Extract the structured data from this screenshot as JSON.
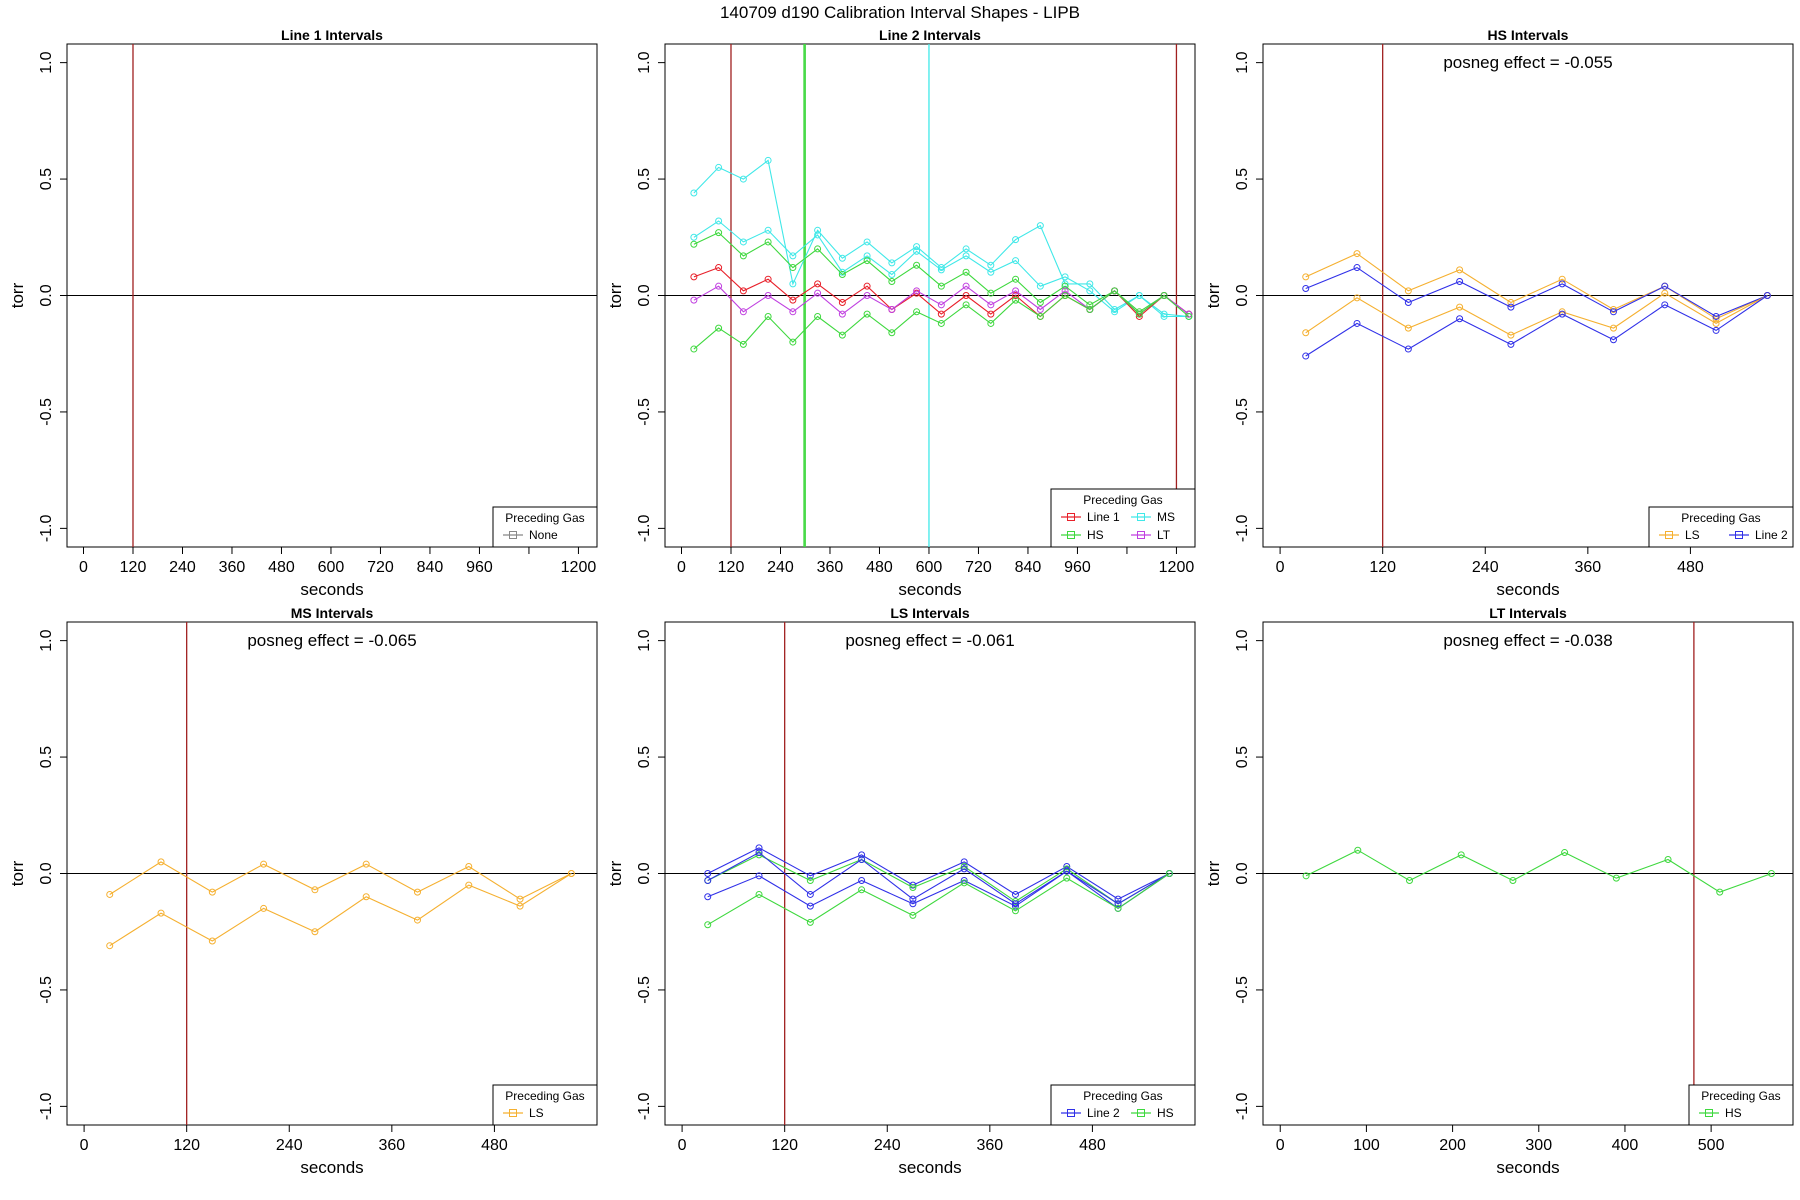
{
  "figure_title": "140709   d190   Calibration Interval Shapes - LIPB",
  "colors": {
    "Line 1": "#e8202a",
    "Line 2": "#3030e8",
    "HS": "#3ed83e",
    "MS": "#40e8e8",
    "LT": "#c040e0",
    "LS": "#f5b030",
    "None": "#888888",
    "marker": "#a02020",
    "axis": "#000000"
  },
  "chart_data": [
    {
      "type": "line",
      "title": "Line 1 Intervals",
      "xlabel": "seconds",
      "ylabel": "torr",
      "xlim": [
        -40,
        1245
      ],
      "ylim": [
        -1.08,
        1.08
      ],
      "xticks": [
        0,
        120,
        240,
        360,
        480,
        600,
        720,
        840,
        960,
        1080,
        1200
      ],
      "xtick_labels": [
        "0",
        "120",
        "240",
        "360",
        "480",
        "600",
        "720",
        "840",
        "960",
        "",
        "1200"
      ],
      "yticks": [
        -1.0,
        -0.5,
        0.0,
        0.5,
        1.0
      ],
      "ytick_labels": [
        "-1.0",
        "-0.5",
        "0.0",
        "0.5",
        "1.0"
      ],
      "vlines": [
        {
          "x": 120,
          "color_key": "marker"
        }
      ],
      "legend": {
        "title": "Preceding Gas",
        "entries": [
          "None"
        ],
        "columns": 1
      },
      "annotation": "",
      "series": []
    },
    {
      "type": "line",
      "title": "Line 2 Intervals",
      "xlabel": "seconds",
      "ylabel": "torr",
      "xlim": [
        -40,
        1245
      ],
      "ylim": [
        -1.08,
        1.08
      ],
      "xticks": [
        0,
        120,
        240,
        360,
        480,
        600,
        720,
        840,
        960,
        1080,
        1200
      ],
      "xtick_labels": [
        "0",
        "120",
        "240",
        "360",
        "480",
        "600",
        "720",
        "840",
        "960",
        "",
        "1200"
      ],
      "yticks": [
        -1.0,
        -0.5,
        0.0,
        0.5,
        1.0
      ],
      "ytick_labels": [
        "-1.0",
        "-0.5",
        "0.0",
        "0.5",
        "1.0"
      ],
      "vlines": [
        {
          "x": 120,
          "color_key": "marker"
        },
        {
          "x": 297,
          "color_key": "HS"
        },
        {
          "x": 300,
          "color_key": "HS"
        },
        {
          "x": 600,
          "color_key": "MS"
        },
        {
          "x": 1200,
          "color_key": "marker"
        }
      ],
      "legend": {
        "title": "Preceding Gas",
        "entries": [
          "Line 1",
          "MS",
          "HS",
          "LT"
        ],
        "columns": 2
      },
      "annotation": "",
      "series": [
        {
          "name": "MS",
          "x": [
            30,
            90,
            150,
            210,
            270,
            330,
            390,
            450,
            510,
            570,
            630,
            690,
            750,
            810,
            870,
            930,
            990,
            1050,
            1110,
            1170,
            1230
          ],
          "values": [
            0.44,
            0.55,
            0.5,
            0.58,
            0.05,
            0.28,
            0.16,
            0.23,
            0.14,
            0.21,
            0.12,
            0.2,
            0.13,
            0.24,
            0.3,
            0.05,
            0.05,
            -0.06,
            0.0,
            -0.08,
            -0.09
          ]
        },
        {
          "name": "MS",
          "x": [
            30,
            90,
            150,
            210,
            270,
            330,
            390,
            450,
            510,
            570,
            630,
            690,
            750,
            810,
            870,
            930,
            990,
            1050,
            1110,
            1170,
            1230
          ],
          "values": [
            0.25,
            0.32,
            0.23,
            0.28,
            0.17,
            0.26,
            0.1,
            0.17,
            0.09,
            0.19,
            0.11,
            0.17,
            0.1,
            0.15,
            0.04,
            0.08,
            0.02,
            -0.07,
            0.0,
            -0.09,
            -0.09
          ]
        },
        {
          "name": "HS",
          "x": [
            30,
            90,
            150,
            210,
            270,
            330,
            390,
            450,
            510,
            570,
            630,
            690,
            750,
            810,
            870,
            930,
            990,
            1050,
            1110,
            1170,
            1230
          ],
          "values": [
            0.22,
            0.27,
            0.17,
            0.23,
            0.12,
            0.2,
            0.09,
            0.15,
            0.06,
            0.13,
            0.04,
            0.1,
            0.01,
            0.07,
            -0.03,
            0.04,
            -0.04,
            0.02,
            -0.07,
            0.0,
            -0.08
          ]
        },
        {
          "name": "Line 1",
          "x": [
            30,
            90,
            150,
            210,
            270,
            330,
            390,
            450,
            510,
            570,
            630,
            690,
            750,
            810,
            870,
            930,
            990,
            1050,
            1110,
            1170,
            1230
          ],
          "values": [
            0.08,
            0.12,
            0.02,
            0.07,
            -0.02,
            0.05,
            -0.03,
            0.04,
            -0.06,
            0.01,
            -0.08,
            0.0,
            -0.08,
            0.0,
            -0.09,
            0.0,
            -0.06,
            0.02,
            -0.09,
            0.0,
            -0.08
          ]
        },
        {
          "name": "LT",
          "x": [
            30,
            90,
            150,
            210,
            270,
            330,
            390,
            450,
            510,
            570,
            630,
            690,
            750,
            810,
            870,
            930,
            990,
            1050,
            1110,
            1170,
            1230
          ],
          "values": [
            -0.02,
            0.04,
            -0.07,
            0.0,
            -0.07,
            0.01,
            -0.08,
            0.0,
            -0.06,
            0.02,
            -0.04,
            0.04,
            -0.04,
            0.02,
            -0.06,
            0.02,
            -0.06,
            0.02,
            -0.08,
            0.0,
            -0.08
          ]
        },
        {
          "name": "HS",
          "x": [
            30,
            90,
            150,
            210,
            270,
            330,
            390,
            450,
            510,
            570,
            630,
            690,
            750,
            810,
            870,
            930,
            990,
            1050,
            1110,
            1170,
            1230
          ],
          "values": [
            -0.23,
            -0.14,
            -0.21,
            -0.09,
            -0.2,
            -0.09,
            -0.17,
            -0.08,
            -0.16,
            -0.07,
            -0.12,
            -0.04,
            -0.12,
            -0.02,
            -0.09,
            0.0,
            -0.06,
            0.02,
            -0.08,
            0.0,
            -0.09
          ]
        }
      ]
    },
    {
      "type": "line",
      "title": "HS Intervals",
      "xlabel": "seconds",
      "ylabel": "torr",
      "xlim": [
        -20,
        600
      ],
      "ylim": [
        -1.08,
        1.08
      ],
      "xticks": [
        0,
        120,
        240,
        360,
        480
      ],
      "xtick_labels": [
        "0",
        "120",
        "240",
        "360",
        "480"
      ],
      "yticks": [
        -1.0,
        -0.5,
        0.0,
        0.5,
        1.0
      ],
      "ytick_labels": [
        "-1.0",
        "-0.5",
        "0.0",
        "0.5",
        "1.0"
      ],
      "vlines": [
        {
          "x": 120,
          "color_key": "marker"
        }
      ],
      "legend": {
        "title": "Preceding Gas",
        "entries": [
          "LS",
          "Line 2"
        ],
        "columns": 2
      },
      "annotation": "posneg effect = -0.055",
      "series": [
        {
          "name": "LS",
          "x": [
            30,
            90,
            150,
            210,
            270,
            330,
            390,
            450,
            510,
            570
          ],
          "values": [
            0.08,
            0.18,
            0.02,
            0.11,
            -0.03,
            0.07,
            -0.06,
            0.04,
            -0.1,
            0.0
          ]
        },
        {
          "name": "Line 2",
          "x": [
            30,
            90,
            150,
            210,
            270,
            330,
            390,
            450,
            510,
            570
          ],
          "values": [
            0.03,
            0.12,
            -0.03,
            0.06,
            -0.05,
            0.05,
            -0.07,
            0.04,
            -0.09,
            0.0
          ]
        },
        {
          "name": "LS",
          "x": [
            30,
            90,
            150,
            210,
            270,
            330,
            390,
            450,
            510,
            570
          ],
          "values": [
            -0.16,
            -0.01,
            -0.14,
            -0.05,
            -0.17,
            -0.07,
            -0.14,
            0.01,
            -0.12,
            0.0
          ]
        },
        {
          "name": "Line 2",
          "x": [
            30,
            90,
            150,
            210,
            270,
            330,
            390,
            450,
            510,
            570
          ],
          "values": [
            -0.26,
            -0.12,
            -0.23,
            -0.1,
            -0.21,
            -0.08,
            -0.19,
            -0.04,
            -0.15,
            0.0
          ]
        }
      ]
    },
    {
      "type": "line",
      "title": "MS Intervals",
      "xlabel": "seconds",
      "ylabel": "torr",
      "xlim": [
        -20,
        600
      ],
      "ylim": [
        -1.08,
        1.08
      ],
      "xticks": [
        0,
        120,
        240,
        360,
        480
      ],
      "xtick_labels": [
        "0",
        "120",
        "240",
        "360",
        "480"
      ],
      "yticks": [
        -1.0,
        -0.5,
        0.0,
        0.5,
        1.0
      ],
      "ytick_labels": [
        "-1.0",
        "-0.5",
        "0.0",
        "0.5",
        "1.0"
      ],
      "vlines": [
        {
          "x": 120,
          "color_key": "marker"
        }
      ],
      "legend": {
        "title": "Preceding Gas",
        "entries": [
          "LS"
        ],
        "columns": 1
      },
      "annotation": "posneg effect = -0.065",
      "series": [
        {
          "name": "LS",
          "x": [
            30,
            90,
            150,
            210,
            270,
            330,
            390,
            450,
            510,
            570
          ],
          "values": [
            -0.09,
            0.05,
            -0.08,
            0.04,
            -0.07,
            0.04,
            -0.08,
            0.03,
            -0.11,
            0.0
          ]
        },
        {
          "name": "LS",
          "x": [
            30,
            90,
            150,
            210,
            270,
            330,
            390,
            450,
            510,
            570
          ],
          "values": [
            -0.31,
            -0.17,
            -0.29,
            -0.15,
            -0.25,
            -0.1,
            -0.2,
            -0.05,
            -0.14,
            0.0
          ]
        }
      ]
    },
    {
      "type": "line",
      "title": "LS Intervals",
      "xlabel": "seconds",
      "ylabel": "torr",
      "xlim": [
        -20,
        600
      ],
      "ylim": [
        -1.08,
        1.08
      ],
      "xticks": [
        0,
        120,
        240,
        360,
        480
      ],
      "xtick_labels": [
        "0",
        "120",
        "240",
        "360",
        "480"
      ],
      "yticks": [
        -1.0,
        -0.5,
        0.0,
        0.5,
        1.0
      ],
      "ytick_labels": [
        "-1.0",
        "-0.5",
        "0.0",
        "0.5",
        "1.0"
      ],
      "vlines": [
        {
          "x": 120,
          "color_key": "marker"
        }
      ],
      "legend": {
        "title": "Preceding Gas",
        "entries": [
          "Line 2",
          "HS"
        ],
        "columns": 2
      },
      "annotation": "posneg effect = -0.061",
      "series": [
        {
          "name": "Line 2",
          "x": [
            30,
            90,
            150,
            210,
            270,
            330,
            390,
            450,
            510,
            570
          ],
          "values": [
            0.0,
            0.11,
            -0.01,
            0.08,
            -0.05,
            0.05,
            -0.09,
            0.03,
            -0.11,
            0.0
          ]
        },
        {
          "name": "HS",
          "x": [
            30,
            90,
            150,
            210,
            270,
            330,
            390,
            450,
            510,
            570
          ],
          "values": [
            -0.03,
            0.08,
            -0.03,
            0.06,
            -0.06,
            0.03,
            -0.12,
            0.02,
            -0.13,
            0.0
          ]
        },
        {
          "name": "Line 2",
          "x": [
            30,
            90,
            150,
            210,
            270,
            330,
            390,
            450,
            510,
            570
          ],
          "values": [
            -0.03,
            0.09,
            -0.09,
            0.06,
            -0.11,
            0.02,
            -0.13,
            0.01,
            -0.13,
            0.0
          ]
        },
        {
          "name": "Line 2",
          "x": [
            30,
            90,
            150,
            210,
            270,
            330,
            390,
            450,
            510,
            570
          ],
          "values": [
            -0.1,
            -0.01,
            -0.14,
            -0.03,
            -0.13,
            -0.03,
            -0.14,
            0.01,
            -0.15,
            0.0
          ]
        },
        {
          "name": "HS",
          "x": [
            30,
            90,
            150,
            210,
            270,
            330,
            390,
            450,
            510,
            570
          ],
          "values": [
            -0.22,
            -0.09,
            -0.21,
            -0.07,
            -0.18,
            -0.04,
            -0.16,
            -0.02,
            -0.15,
            0.0
          ]
        }
      ]
    },
    {
      "type": "line",
      "title": "LT Intervals",
      "xlabel": "seconds",
      "ylabel": "torr",
      "xlim": [
        -20,
        595
      ],
      "ylim": [
        -1.08,
        1.08
      ],
      "xticks": [
        0,
        100,
        200,
        300,
        400,
        500
      ],
      "xtick_labels": [
        "0",
        "100",
        "200",
        "300",
        "400",
        "500"
      ],
      "yticks": [
        -1.0,
        -0.5,
        0.0,
        0.5,
        1.0
      ],
      "ytick_labels": [
        "-1.0",
        "-0.5",
        "0.0",
        "0.5",
        "1.0"
      ],
      "vlines": [
        {
          "x": 480,
          "color_key": "marker"
        }
      ],
      "legend": {
        "title": "Preceding Gas",
        "entries": [
          "HS"
        ],
        "columns": 1
      },
      "annotation": "posneg effect = -0.038",
      "series": [
        {
          "name": "HS",
          "x": [
            30,
            90,
            150,
            210,
            270,
            330,
            390,
            450,
            510,
            570
          ],
          "values": [
            -0.01,
            0.1,
            -0.03,
            0.08,
            -0.03,
            0.09,
            -0.02,
            0.06,
            -0.08,
            0.0
          ]
        }
      ]
    }
  ]
}
